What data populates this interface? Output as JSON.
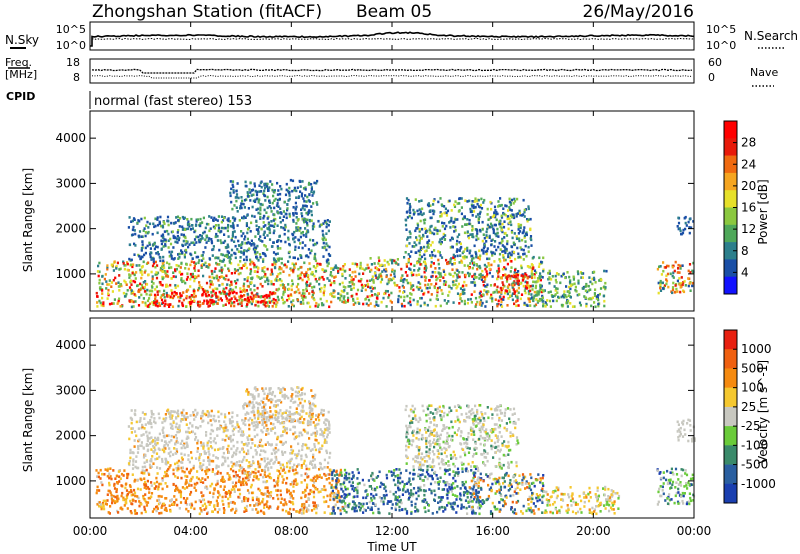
{
  "header": {
    "title": "Zhongshan Station (fitACF)",
    "beam": "Beam 05",
    "date": "26/May/2016"
  },
  "noise_panel": {
    "left_label": "N.Sky",
    "right_label": "N.Search",
    "left_ticks": [
      "10^5",
      "10^0"
    ],
    "right_ticks": [
      "10^5",
      "10^0"
    ],
    "right_legend_style": "dotted"
  },
  "freq_panel": {
    "left_label_1": "Freq.",
    "left_label_2": "[MHz]",
    "right_label": "Nave",
    "left_ticks": [
      "18",
      "8"
    ],
    "right_ticks": [
      "60",
      "0"
    ]
  },
  "cpid": {
    "label": "CPID",
    "text": "normal (fast stereo) 153"
  },
  "x_axis": {
    "label": "Time UT",
    "ticks": [
      "00:00",
      "04:00",
      "08:00",
      "12:00",
      "16:00",
      "20:00",
      "00:00"
    ]
  },
  "chart_data": [
    {
      "type": "heatmap",
      "title": "",
      "xlabel": "Time UT",
      "ylabel": "Slant Range [km]",
      "x_hours_range": [
        0,
        24
      ],
      "ylim": [
        180,
        4600
      ],
      "y_ticks": [
        1000,
        2000,
        3000,
        4000
      ],
      "colorbar": {
        "label": "Power [dB]",
        "ticks": [
          "4",
          "8",
          "12",
          "16",
          "20",
          "24",
          "28"
        ],
        "colors": [
          "#1212ff",
          "#1a4fa6",
          "#2c7f8c",
          "#4fa85a",
          "#8bc840",
          "#e6e02a",
          "#f5a520",
          "#f06a10",
          "#e81a0a",
          "#ff0000"
        ]
      },
      "scatter_regions": [
        {
          "t0": 0.2,
          "t1": 11.0,
          "r0": 300,
          "r1": 1300,
          "weights": [
            0,
            0,
            1,
            2,
            2,
            2,
            1,
            1,
            1,
            1
          ]
        },
        {
          "t0": 2.5,
          "t1": 7.5,
          "r0": 300,
          "r1": 650,
          "weights": [
            0,
            0,
            0,
            0,
            0,
            0,
            1,
            2,
            3,
            6
          ]
        },
        {
          "t0": 1.5,
          "t1": 9.5,
          "r0": 1300,
          "r1": 2300,
          "weights": [
            0,
            3,
            2,
            1,
            1,
            0,
            0,
            0,
            0,
            0
          ]
        },
        {
          "t0": 5.5,
          "t1": 9.0,
          "r0": 2300,
          "r1": 3100,
          "weights": [
            0,
            3,
            2,
            1,
            0,
            0,
            0,
            0,
            0,
            0
          ]
        },
        {
          "t0": 11.0,
          "t1": 18.0,
          "r0": 300,
          "r1": 1400,
          "weights": [
            0,
            1,
            2,
            2,
            2,
            2,
            1,
            1,
            1,
            1
          ]
        },
        {
          "t0": 16.0,
          "t1": 17.5,
          "r0": 600,
          "r1": 1000,
          "weights": [
            0,
            0,
            0,
            0,
            0,
            0,
            1,
            2,
            3,
            2
          ]
        },
        {
          "t0": 12.5,
          "t1": 17.5,
          "r0": 1400,
          "r1": 2700,
          "weights": [
            0,
            3,
            2,
            1,
            1,
            1,
            0,
            0,
            0,
            0
          ]
        },
        {
          "t0": 17.5,
          "t1": 20.5,
          "r0": 300,
          "r1": 1100,
          "weights": [
            0,
            1,
            1,
            2,
            2,
            1,
            0,
            0,
            0,
            0
          ]
        },
        {
          "t0": 22.5,
          "t1": 24.0,
          "r0": 600,
          "r1": 1300,
          "weights": [
            0,
            1,
            1,
            1,
            1,
            1,
            1,
            2,
            1,
            0
          ]
        },
        {
          "t0": 23.3,
          "t1": 24.0,
          "r0": 1900,
          "r1": 2300,
          "weights": [
            0,
            3,
            1,
            0,
            0,
            0,
            0,
            0,
            0,
            0
          ]
        }
      ]
    },
    {
      "type": "heatmap",
      "title": "",
      "xlabel": "Time UT",
      "ylabel": "Slant Range [km]",
      "x_hours_range": [
        0,
        24
      ],
      "ylim": [
        180,
        4600
      ],
      "y_ticks": [
        1000,
        2000,
        3000,
        4000
      ],
      "colorbar": {
        "label": "Velocity [m s^-1]",
        "ticks": [
          "1000",
          "500",
          "100",
          "25",
          "-25",
          "-100",
          "-500",
          "-1000"
        ],
        "colors": [
          "#1a3fb0",
          "#2a5fa0",
          "#3a8a6a",
          "#6acb3a",
          "#c8c8c0",
          "#f5c830",
          "#f58a10",
          "#f06010",
          "#e82010"
        ]
      },
      "scatter_regions": [
        {
          "t0": 0.2,
          "t1": 10.0,
          "r0": 300,
          "r1": 1300,
          "weights": [
            0,
            0,
            0,
            0,
            1,
            2,
            4,
            2,
            0
          ]
        },
        {
          "t0": 1.5,
          "t1": 9.5,
          "r0": 1300,
          "r1": 2600,
          "weights": [
            0,
            0,
            0,
            0,
            5,
            1,
            1,
            0,
            0
          ]
        },
        {
          "t0": 6.0,
          "t1": 9.0,
          "r0": 2300,
          "r1": 3100,
          "weights": [
            0,
            0,
            0,
            0,
            5,
            1,
            1,
            0,
            0
          ]
        },
        {
          "t0": 9.5,
          "t1": 15.5,
          "r0": 300,
          "r1": 1300,
          "weights": [
            2,
            3,
            3,
            1,
            1,
            0,
            0,
            0,
            0
          ]
        },
        {
          "t0": 12.5,
          "t1": 17.0,
          "r0": 1300,
          "r1": 2700,
          "weights": [
            0,
            0,
            1,
            1,
            5,
            1,
            0,
            0,
            0
          ]
        },
        {
          "t0": 15.0,
          "t1": 18.0,
          "r0": 300,
          "r1": 1200,
          "weights": [
            1,
            2,
            2,
            1,
            1,
            1,
            2,
            1,
            0
          ]
        },
        {
          "t0": 18.0,
          "t1": 21.0,
          "r0": 300,
          "r1": 900,
          "weights": [
            0,
            0,
            0,
            1,
            2,
            2,
            1,
            0,
            0
          ]
        },
        {
          "t0": 22.5,
          "t1": 24.0,
          "r0": 500,
          "r1": 1300,
          "weights": [
            1,
            1,
            1,
            2,
            2,
            0,
            0,
            0,
            0
          ]
        },
        {
          "t0": 23.3,
          "t1": 24.0,
          "r0": 1900,
          "r1": 2400,
          "weights": [
            0,
            0,
            0,
            0,
            4,
            0,
            0,
            0,
            0
          ]
        }
      ]
    }
  ]
}
